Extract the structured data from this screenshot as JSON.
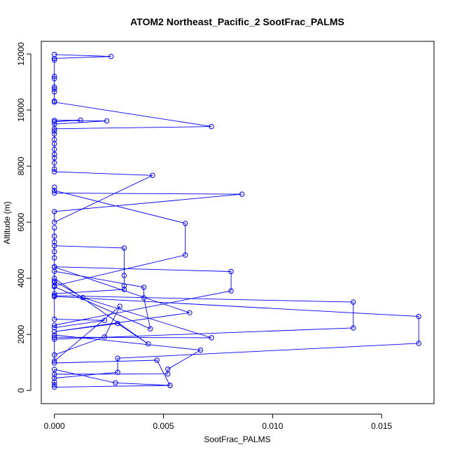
{
  "chart_data": {
    "type": "line",
    "title": "ATOM2 Northeast_Pacific_2 SootFrac_PALMS",
    "xlabel": "SootFrac_PALMS",
    "ylabel": "Altitude (m)",
    "xlim": [
      -0.0006,
      0.0174
    ],
    "ylim": [
      -470,
      12450
    ],
    "xticks": [
      0.0,
      0.005,
      0.01,
      0.015
    ],
    "xtick_labels": [
      "0.000",
      "0.005",
      "0.010",
      "0.015"
    ],
    "yticks": [
      0,
      2000,
      4000,
      6000,
      8000,
      10000,
      12000
    ],
    "ytick_labels": [
      "0",
      "2000",
      "4000",
      "6000",
      "8000",
      "10000",
      "12000"
    ],
    "grid": false,
    "legend": "none",
    "marker": "open-circle",
    "color": "#0000ff",
    "series": [
      {
        "points": [
          [
            0.0,
            11980
          ],
          [
            0.0026,
            11910
          ],
          [
            0.0,
            11840
          ],
          [
            0.0,
            11780
          ],
          [
            0.0,
            11200
          ],
          [
            0.0,
            11120
          ],
          [
            0.0,
            10820
          ],
          [
            0.0,
            10750
          ],
          [
            0.0,
            10650
          ],
          [
            0.0,
            10320
          ],
          [
            0.0,
            10280
          ],
          [
            0.0072,
            9410
          ],
          [
            0.0,
            9330
          ],
          [
            0.0,
            9500
          ],
          [
            0.0024,
            9610
          ],
          [
            0.0,
            9630
          ],
          [
            0.0012,
            9640
          ],
          [
            0.0,
            9580
          ],
          [
            0.0,
            9250
          ],
          [
            0.0,
            9150
          ],
          [
            0.0,
            8950
          ],
          [
            0.0,
            8800
          ],
          [
            0.0,
            8600
          ],
          [
            0.0,
            8420
          ],
          [
            0.0,
            8300
          ],
          [
            0.0,
            8120
          ],
          [
            0.0,
            7900
          ],
          [
            0.0,
            7800
          ],
          [
            0.0045,
            7670
          ],
          [
            0.0,
            6000
          ],
          [
            0.0,
            6380
          ],
          [
            0.0086,
            7000
          ],
          [
            0.0,
            7040
          ],
          [
            0.0,
            7250
          ],
          [
            0.0,
            7130
          ],
          [
            0.006,
            5960
          ],
          [
            0.006,
            4830
          ],
          [
            0.0,
            3730
          ],
          [
            0.0,
            3850
          ],
          [
            0.0,
            5160
          ],
          [
            0.0032,
            5080
          ],
          [
            0.0032,
            4100
          ],
          [
            0.0032,
            3730
          ],
          [
            0.0032,
            3600
          ],
          [
            0.0,
            3450
          ],
          [
            0.0,
            3380
          ],
          [
            0.0137,
            3150
          ],
          [
            0.0137,
            2230
          ],
          [
            0.0,
            1830
          ],
          [
            0.0,
            1980
          ],
          [
            0.0067,
            1440
          ],
          [
            0.0052,
            760
          ],
          [
            0.0052,
            590
          ],
          [
            0.0,
            580
          ],
          [
            0.0,
            440
          ],
          [
            0.0029,
            650
          ],
          [
            0.0029,
            1150
          ],
          [
            0.0167,
            1680
          ],
          [
            0.0167,
            2640
          ],
          [
            0.0,
            3350
          ],
          [
            0.0,
            3700
          ],
          [
            0.0044,
            2200
          ],
          [
            0.0041,
            3300
          ],
          [
            0.0041,
            3680
          ],
          [
            0.0,
            4250
          ],
          [
            0.0,
            4410
          ],
          [
            0.0081,
            4240
          ],
          [
            0.0081,
            3550
          ],
          [
            0.0,
            2330
          ],
          [
            0.0,
            2240
          ],
          [
            0.0023,
            2500
          ],
          [
            0.0,
            2540
          ],
          [
            0.0,
            4730
          ],
          [
            0.0,
            4950
          ],
          [
            0.0,
            5300
          ],
          [
            0.0,
            5500
          ],
          [
            0.0,
            5800
          ],
          [
            0.0,
            4400
          ],
          [
            0.0062,
            2770
          ],
          [
            0.0,
            2100
          ],
          [
            0.0029,
            2390
          ],
          [
            0.0043,
            1660
          ],
          [
            0.0,
            4000
          ],
          [
            0.0,
            3900
          ],
          [
            0.0013,
            3310
          ],
          [
            0.0072,
            1880
          ],
          [
            0.0,
            1900
          ],
          [
            0.0,
            1050
          ],
          [
            0.003,
            3000
          ],
          [
            0.0023,
            1910
          ],
          [
            0.0,
            1270
          ],
          [
            0.0,
            980
          ],
          [
            0.0047,
            1080
          ],
          [
            0.0053,
            180
          ],
          [
            0.0028,
            270
          ],
          [
            0.0,
            750
          ],
          [
            0.0,
            300
          ],
          [
            0.0,
            200
          ],
          [
            0.0,
            120
          ],
          [
            0.0053,
            180
          ]
        ]
      }
    ]
  }
}
